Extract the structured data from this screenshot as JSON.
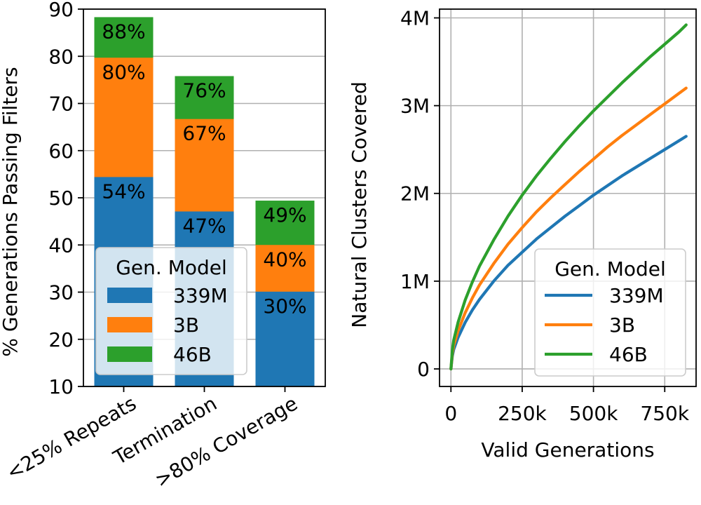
{
  "chart_data": [
    {
      "type": "bar",
      "stacked": "overlay",
      "title": "",
      "xlabel": "",
      "ylabel": "% Generations Passing Filters",
      "ylim": [
        10,
        90
      ],
      "yticks": [
        10,
        20,
        30,
        40,
        50,
        60,
        70,
        80,
        90
      ],
      "grid": true,
      "categories": [
        "<25% Repeats",
        "Termination",
        ">80% Coverage"
      ],
      "series": [
        {
          "name": "46B",
          "color": "#2ca02c",
          "values": [
            88.3,
            75.8,
            49.4
          ],
          "labels": [
            "88%",
            "76%",
            "49%"
          ]
        },
        {
          "name": "3B",
          "color": "#ff7f0e",
          "values": [
            79.7,
            66.7,
            40.0
          ],
          "labels": [
            "80%",
            "67%",
            "40%"
          ]
        },
        {
          "name": "339M",
          "color": "#1f77b4",
          "values": [
            54.4,
            47.1,
            30.1
          ],
          "labels": [
            "54%",
            "47%",
            "30%"
          ]
        }
      ],
      "legend": {
        "title": "Gen. Model",
        "position": "lower-left",
        "entries": [
          "339M",
          "3B",
          "46B"
        ]
      }
    },
    {
      "type": "line",
      "title": "",
      "xlabel": "Valid Generations",
      "ylabel": "Natural Clusters Covered",
      "xlim": [
        -40000,
        860000
      ],
      "ylim": [
        -200000,
        4100000
      ],
      "xticks": [
        0,
        250000,
        500000,
        750000
      ],
      "xtick_labels": [
        "0",
        "250k",
        "500k",
        "750k"
      ],
      "yticks": [
        0,
        1000000,
        2000000,
        3000000,
        4000000
      ],
      "ytick_labels": [
        "0",
        "1M",
        "2M",
        "3M",
        "4M"
      ],
      "grid": true,
      "x": [
        0,
        5000,
        10000,
        25000,
        50000,
        75000,
        100000,
        150000,
        200000,
        250000,
        300000,
        350000,
        400000,
        450000,
        500000,
        550000,
        600000,
        650000,
        700000,
        750000,
        800000,
        825000
      ],
      "series": [
        {
          "name": "339M",
          "color": "#1f77b4",
          "values": [
            0,
            147000,
            223000,
            357000,
            530000,
            670000,
            790000,
            1000000,
            1180000,
            1330000,
            1480000,
            1610000,
            1740000,
            1860000,
            1980000,
            2090000,
            2200000,
            2300000,
            2400000,
            2500000,
            2600000,
            2650000
          ]
        },
        {
          "name": "3B",
          "color": "#ff7f0e",
          "values": [
            0,
            177000,
            270000,
            432000,
            640000,
            808000,
            955000,
            1200000,
            1420000,
            1610000,
            1790000,
            1950000,
            2100000,
            2250000,
            2390000,
            2530000,
            2660000,
            2780000,
            2900000,
            3020000,
            3140000,
            3200000
          ]
        },
        {
          "name": "46B",
          "color": "#2ca02c",
          "values": [
            0,
            217000,
            330000,
            530000,
            785000,
            990000,
            1170000,
            1470000,
            1740000,
            1980000,
            2200000,
            2400000,
            2590000,
            2770000,
            2940000,
            3100000,
            3260000,
            3410000,
            3560000,
            3700000,
            3840000,
            3920000
          ]
        }
      ],
      "legend": {
        "title": "Gen. Model",
        "position": "lower-right",
        "entries": [
          "339M",
          "3B",
          "46B"
        ]
      }
    }
  ]
}
